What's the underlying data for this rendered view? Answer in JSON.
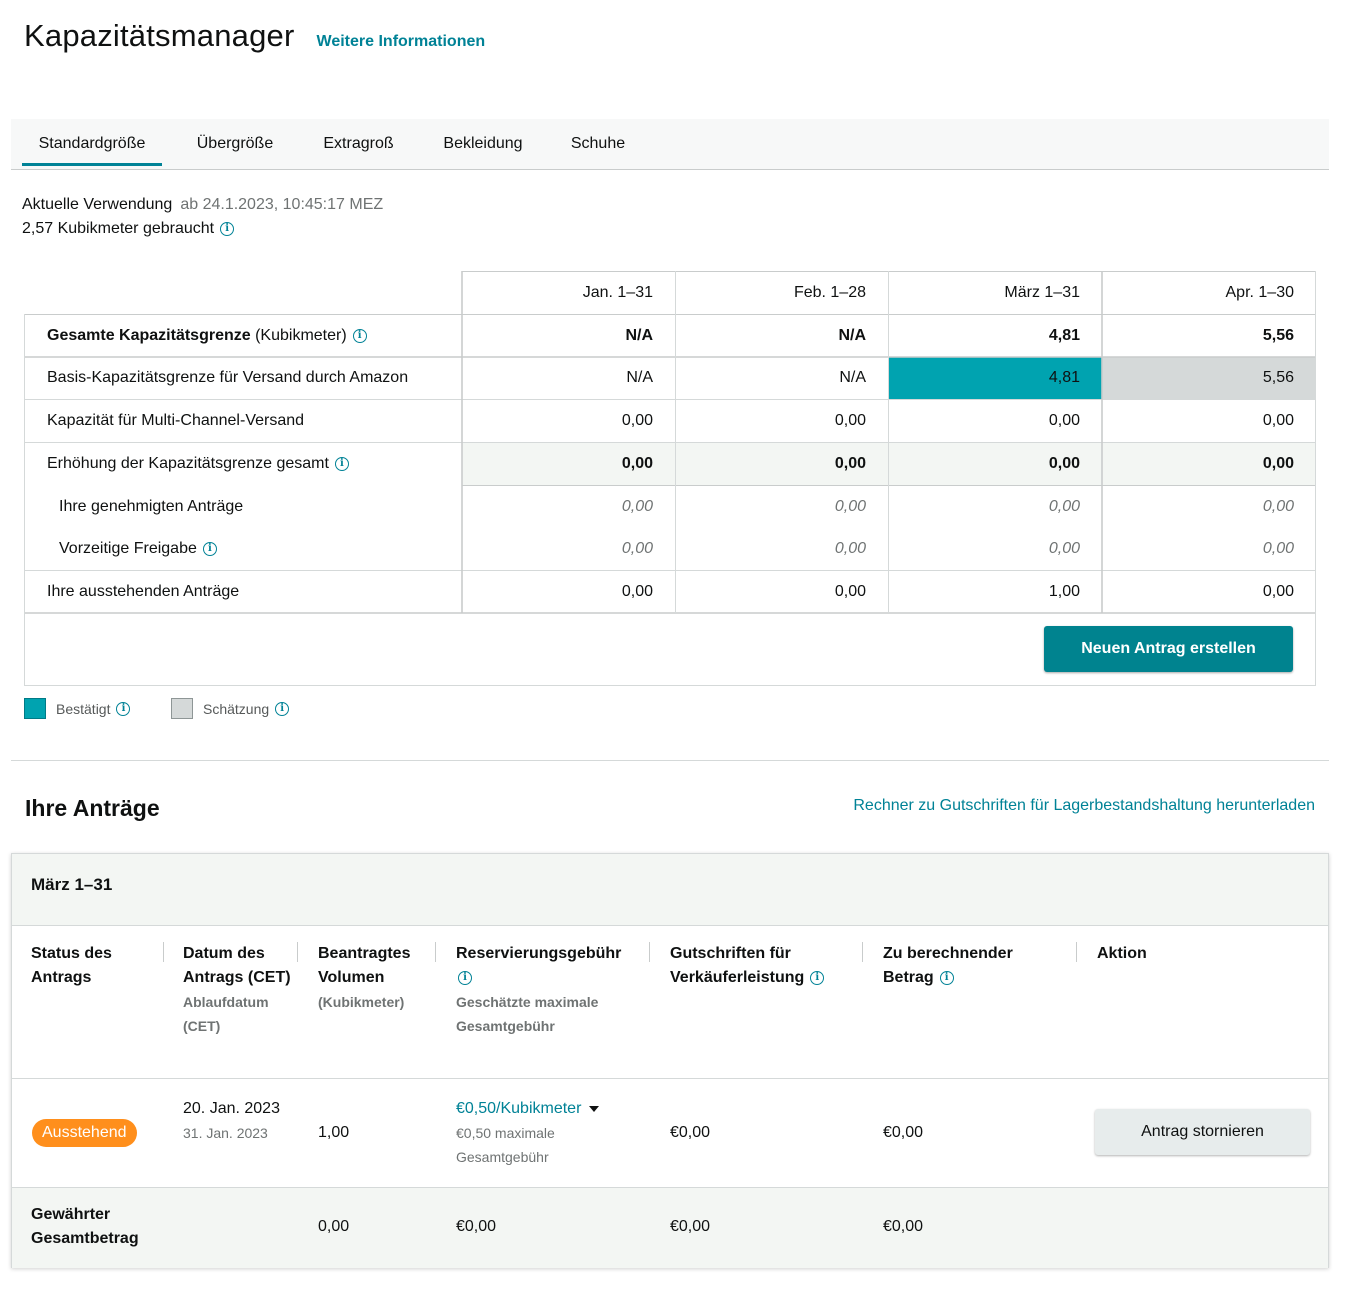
{
  "header": {
    "title": "Kapazitätsmanager",
    "learn_more": "Weitere Informationen"
  },
  "tabs": [
    {
      "label": "Standardgröße",
      "active": true
    },
    {
      "label": "Übergröße"
    },
    {
      "label": "Extragroß"
    },
    {
      "label": "Bekleidung"
    },
    {
      "label": "Schuhe"
    }
  ],
  "usage": {
    "label": "Aktuelle Verwendung",
    "timestamp": "ab 24.1.2023, 10:45:17 MEZ",
    "used": "2,57 Kubikmeter gebraucht"
  },
  "capacity": {
    "columns": [
      "Jan. 1–31",
      "Feb. 1–28",
      "März 1–31",
      "Apr. 1–30"
    ],
    "rows": [
      {
        "label_bold": "Gesamte Kapazitätsgrenze",
        "label_rest": " (Kubikmeter)",
        "values": [
          "N/A",
          "N/A",
          "4,81",
          "5,56"
        ]
      },
      {
        "label": "Basis-Kapazitätsgrenze für Versand durch Amazon",
        "values": [
          "N/A",
          "N/A",
          "4,81",
          "5,56"
        ]
      },
      {
        "label": "Kapazität für Multi-Channel-Versand",
        "values": [
          "0,00",
          "0,00",
          "0,00",
          "0,00"
        ]
      },
      {
        "label": "Erhöhung der Kapazitätsgrenze gesamt",
        "values": [
          "0,00",
          "0,00",
          "0,00",
          "0,00"
        ]
      },
      {
        "label": "Ihre genehmigten Anträge",
        "values": [
          "0,00",
          "0,00",
          "0,00",
          "0,00"
        ]
      },
      {
        "label": "Vorzeitige Freigabe",
        "values": [
          "0,00",
          "0,00",
          "0,00",
          "0,00"
        ]
      },
      {
        "label": "Ihre ausstehenden Anträge",
        "values": [
          "0,00",
          "0,00",
          "1,00",
          "0,00"
        ]
      }
    ],
    "new_request_button": "Neuen Antrag erstellen"
  },
  "legend": {
    "confirmed": {
      "label": "Bestätigt",
      "color": "#00a3b0"
    },
    "estimate": {
      "label": "Schätzung",
      "color": "#d5d9d9"
    }
  },
  "requests": {
    "title": "Ihre Anträge",
    "download_link": "Rechner zu Gutschriften für Lagerbestandshaltung herunterladen",
    "period": "März 1–31",
    "columns": {
      "status": "Status des Antrags",
      "date": "Datum des Antrags (CET)",
      "date_sub": "Ablaufdatum (CET)",
      "volume": "Beantragtes Volumen",
      "volume_sub": "(Kubikmeter)",
      "fee": "Reservierungsgebühr",
      "fee_sub": "Geschätzte maximale Gesamtgebühr",
      "credits": "Gutschriften für Verkäuferleistung",
      "charge": "Zu berechnender Betrag",
      "action": "Aktion"
    },
    "row": {
      "status": "Ausstehend",
      "date": "20. Jan. 2023",
      "expiry": "31. Jan. 2023",
      "volume": "1,00",
      "fee": "€0,50/Kubikmeter",
      "fee_max": "€0,50 maximale Gesamtgebühr",
      "credits": "€0,00",
      "charge": "€0,00",
      "cancel_button": "Antrag stornieren"
    },
    "total": {
      "label": "Gewährter Gesamtbetrag",
      "volume": "0,00",
      "fee": "€0,00",
      "credits": "€0,00",
      "charge": "€0,00"
    }
  }
}
